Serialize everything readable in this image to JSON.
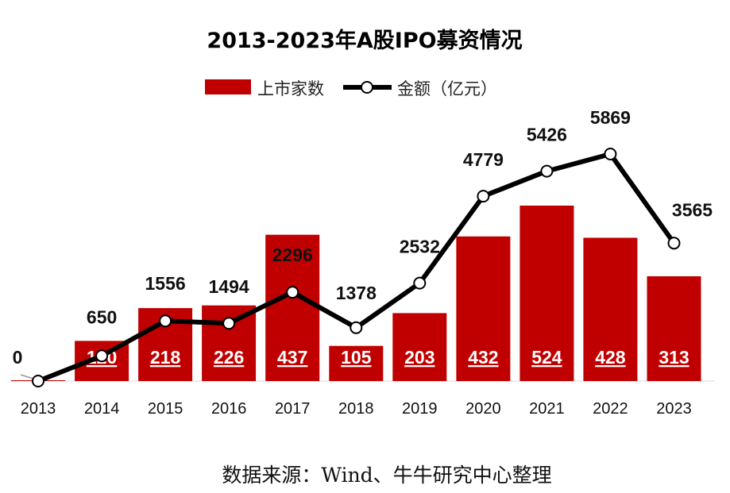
{
  "chart_data": {
    "type": "bar",
    "title": "2013-2023年A股IPO募资情况",
    "categories": [
      "2013",
      "2014",
      "2015",
      "2016",
      "2017",
      "2018",
      "2019",
      "2020",
      "2021",
      "2022",
      "2023"
    ],
    "series": [
      {
        "name": "上市家数",
        "type": "bar",
        "values": [
          2,
          120,
          218,
          226,
          437,
          105,
          203,
          432,
          524,
          428,
          313
        ]
      },
      {
        "name": "金额（亿元）",
        "type": "line",
        "values": [
          0,
          650,
          1556,
          1494,
          2296,
          1378,
          2532,
          4779,
          5426,
          5869,
          3565
        ]
      }
    ],
    "bar_labels": [
      "",
      "120",
      "218",
      "226",
      "437",
      "105",
      "203",
      "432",
      "524",
      "428",
      "313"
    ],
    "line_labels": [
      "0",
      "650",
      "1556",
      "1494",
      "2296",
      "1378",
      "2532",
      "4779",
      "5426",
      "5869",
      "3565"
    ],
    "colors": {
      "bar": "#c00000",
      "line": "#000000",
      "marker_fill": "#ffffff"
    }
  },
  "source": "数据来源：Wind、牛牛研究中心整理"
}
